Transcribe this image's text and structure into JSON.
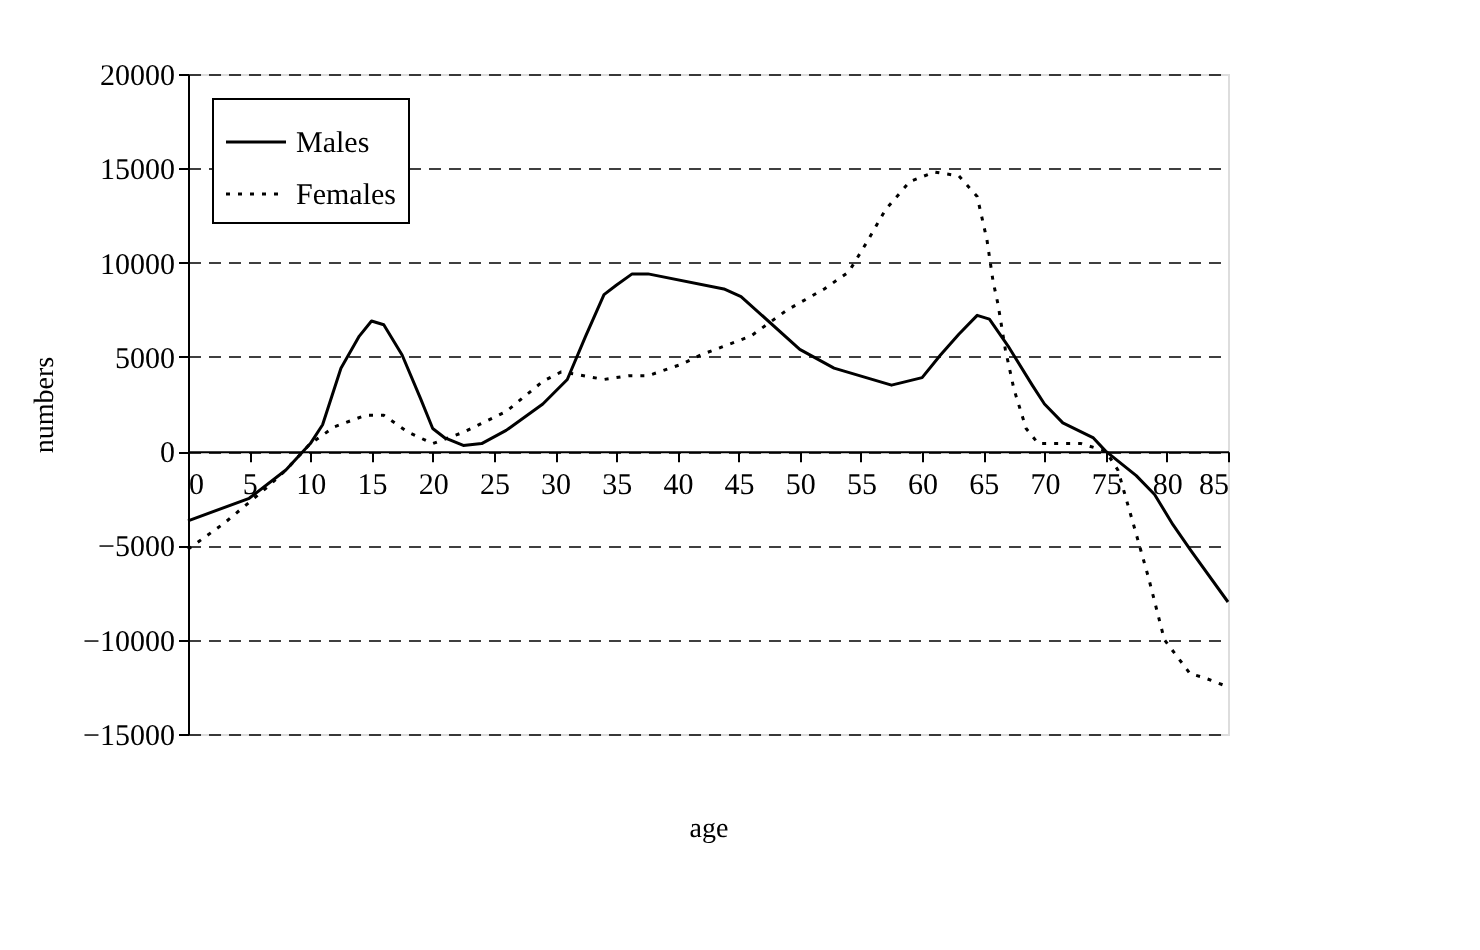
{
  "chart_data": {
    "type": "line",
    "xlabel": "age",
    "ylabel": "numbers",
    "xlim": [
      0,
      85
    ],
    "xticks": [
      0,
      5,
      10,
      15,
      20,
      25,
      30,
      35,
      40,
      45,
      50,
      55,
      60,
      65,
      70,
      75,
      80,
      85
    ],
    "ylim": [
      -15000,
      20000
    ],
    "yticks": [
      -15000,
      -10000,
      -5000,
      0,
      5000,
      10000,
      15000,
      20000
    ],
    "grid": "y",
    "legend": "top left",
    "marker": "none",
    "series": [
      {
        "name": "Males",
        "color": "#000000",
        "line_style": "solid",
        "x": [
          0,
          5,
          8,
          10,
          11,
          12.5,
          14,
          15,
          16,
          17.5,
          19,
          20,
          21,
          22.5,
          24,
          26,
          29,
          31,
          32.5,
          34,
          35,
          36.3,
          37.6,
          43.8,
          45.2,
          50,
          52.8,
          57.5,
          60,
          61.5,
          63,
          64.5,
          65.5,
          67,
          69,
          70,
          71.5,
          74,
          75,
          77.5,
          79,
          80.5,
          82,
          85
        ],
        "values": [
          -3700,
          -2500,
          -1000,
          400,
          1400,
          4400,
          6100,
          6900,
          6700,
          5100,
          2800,
          1200,
          700,
          300,
          400,
          1100,
          2500,
          3800,
          6100,
          8300,
          8800,
          9400,
          9400,
          8600,
          8200,
          5400,
          4400,
          3500,
          3900,
          5100,
          6200,
          7200,
          7000,
          5600,
          3500,
          2500,
          1500,
          700,
          0,
          -1300,
          -2300,
          -3900,
          -5300,
          -8000
        ]
      },
      {
        "name": "Females",
        "color": "#000000",
        "line_style": "dotted",
        "x": [
          0,
          3,
          6.5,
          8,
          10,
          12,
          14.5,
          16,
          18,
          20,
          22.5,
          26,
          29,
          30.5,
          31.5,
          34,
          36,
          37.6,
          40.3,
          41.9,
          46,
          49,
          52,
          54,
          55.5,
          57,
          59,
          61,
          63,
          64.5,
          65.3,
          65.8,
          66.2,
          66.8,
          67.5,
          68.5,
          69.5,
          71,
          73,
          75,
          76,
          77.5,
          78.5,
          79.8,
          81.9,
          83,
          85
        ],
        "values": [
          -5200,
          -3800,
          -1900,
          -1000,
          400,
          1300,
          1900,
          1900,
          1000,
          400,
          1000,
          2100,
          3700,
          4200,
          4100,
          3800,
          4000,
          4000,
          4600,
          5100,
          6100,
          7500,
          8600,
          9500,
          11100,
          12800,
          14300,
          14800,
          14600,
          13500,
          11200,
          9000,
          7800,
          5400,
          3300,
          1200,
          400,
          400,
          400,
          0,
          -1000,
          -4400,
          -6700,
          -10000,
          -11800,
          -12000,
          -12500
        ]
      }
    ]
  }
}
